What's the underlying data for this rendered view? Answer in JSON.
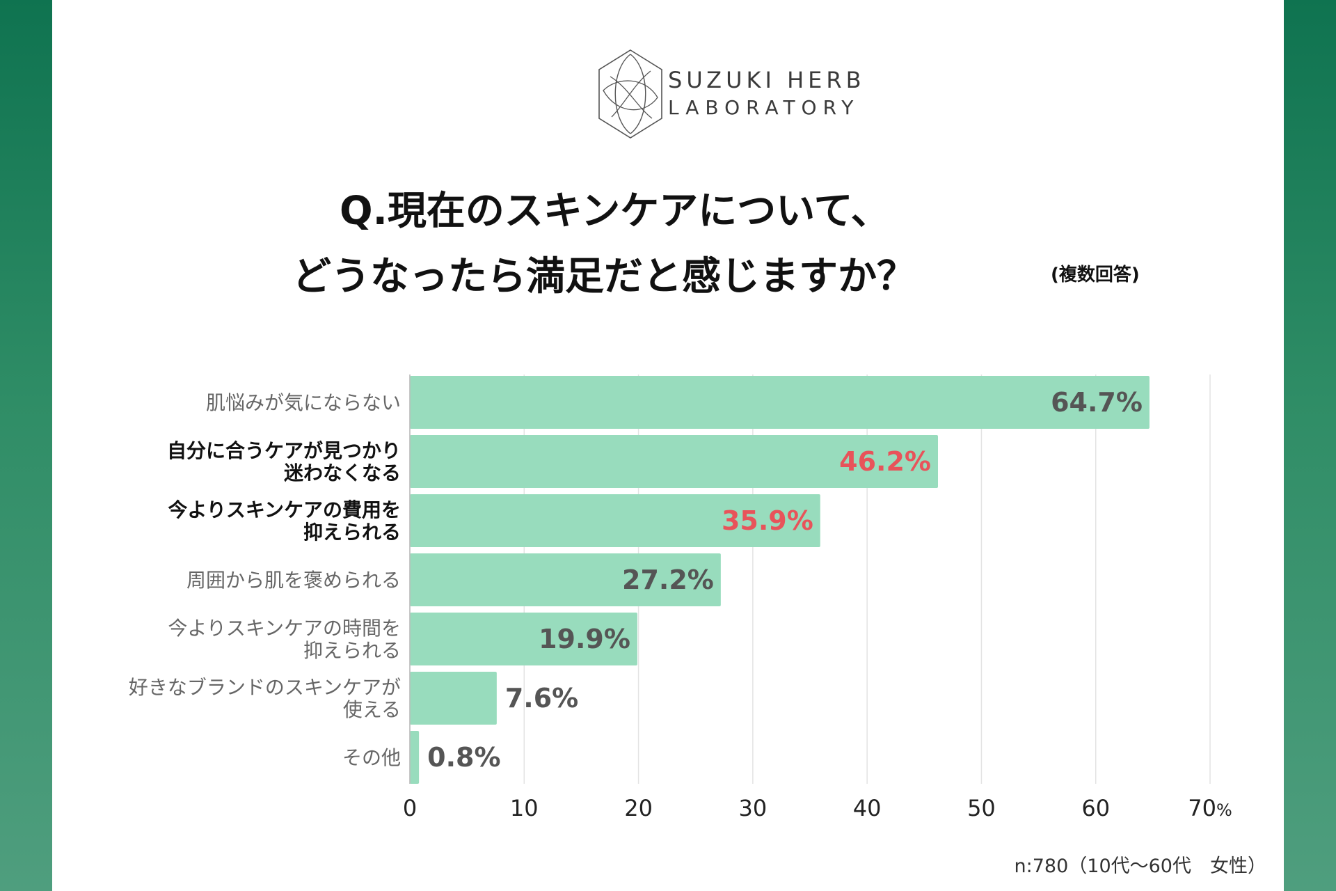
{
  "brand": {
    "name_line1": "SUZUKI HERB",
    "name_line2": "LABORATORY"
  },
  "title": {
    "line1": "Q.現在のスキンケアについて、",
    "line2": "どうなったら満足だと感じますか？",
    "note": "(複数回答)"
  },
  "colors": {
    "bar": "#98dcbd",
    "highlight": "#e8535a",
    "value_text": "#555555",
    "label_text": "#666666",
    "label_bold": "#111111",
    "grid": "#e3e3e3"
  },
  "chart_data": {
    "type": "bar",
    "orientation": "horizontal",
    "categories": [
      [
        "肌悩みが気にならない"
      ],
      [
        "自分に合うケアが見つかり",
        "迷わなくなる"
      ],
      [
        "今よりスキンケアの費用を",
        "抑えられる"
      ],
      [
        "周囲から肌を褒められる"
      ],
      [
        "今よりスキンケアの時間を",
        "抑えられる"
      ],
      [
        "好きなブランドのスキンケアが",
        "使える"
      ],
      [
        "その他"
      ]
    ],
    "values": [
      64.7,
      46.2,
      35.9,
      27.2,
      19.9,
      7.6,
      0.8
    ],
    "value_labels": [
      "64.7%",
      "46.2%",
      "35.9%",
      "27.2%",
      "19.9%",
      "7.6%",
      "0.8%"
    ],
    "highlighted": [
      false,
      true,
      true,
      false,
      false,
      false,
      false
    ],
    "xlim": [
      0,
      70
    ],
    "xticks": [
      "0",
      "10",
      "20",
      "30",
      "40",
      "50",
      "60",
      "70"
    ],
    "x_unit": "%",
    "grid": true
  },
  "footer": {
    "sample": "n:780（10代〜60代　女性）"
  }
}
